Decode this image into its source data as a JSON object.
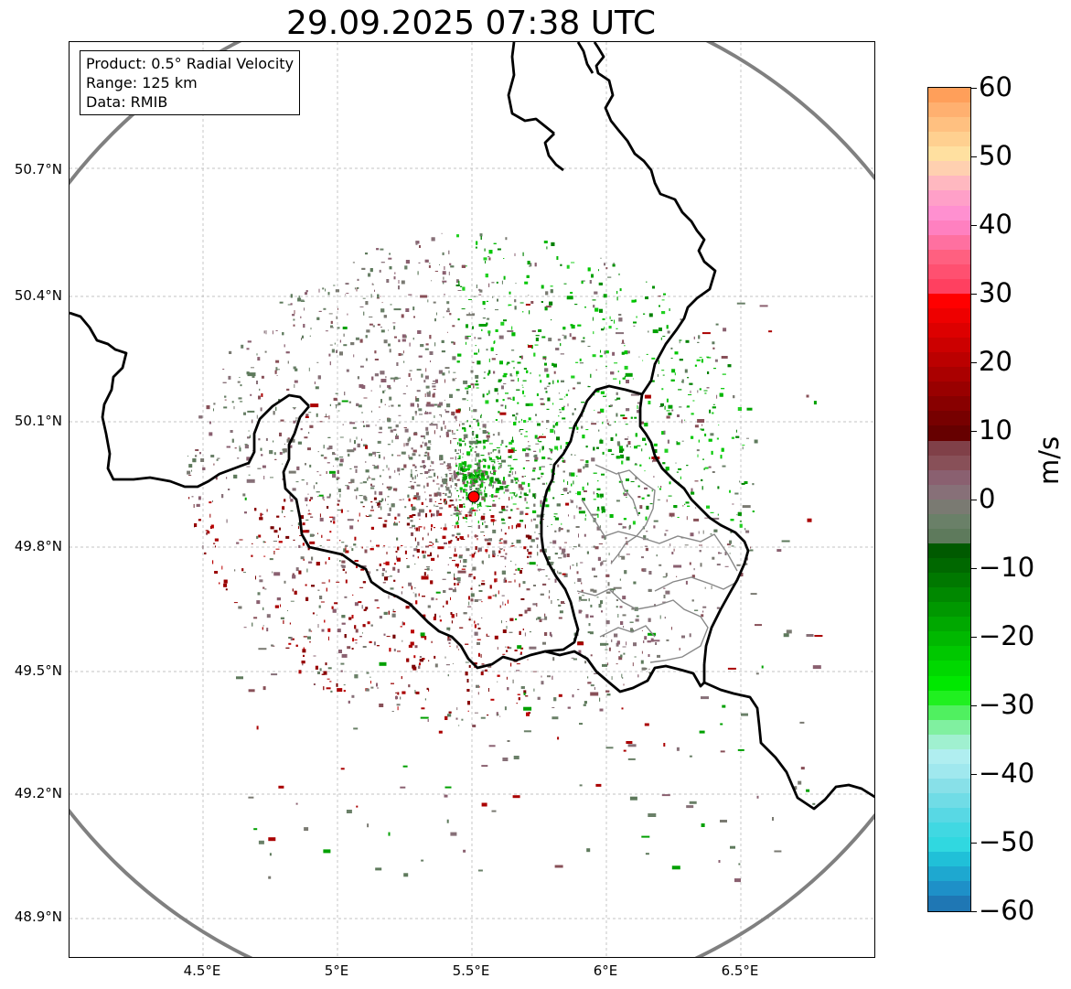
{
  "title": "29.09.2025 07:38 UTC",
  "info_box": {
    "product": "Product: 0.5° Radial Velocity",
    "range": "Range: 125 km",
    "data": "Data: RMIB"
  },
  "lat_labels": [
    "50.7°N",
    "50.4°N",
    "50.1°N",
    "49.8°N",
    "49.5°N",
    "49.2°N",
    "48.9°N"
  ],
  "lon_labels": [
    "4.5°E",
    "5°E",
    "5.5°E",
    "6°E",
    "6.5°E"
  ],
  "colorbar": {
    "unit": "m/s",
    "min": -60,
    "max": 60,
    "ticks": [
      "60",
      "50",
      "40",
      "30",
      "20",
      "10",
      "0",
      "−10",
      "−20",
      "−30",
      "−40",
      "−50",
      "−60"
    ],
    "colors_top_to_bottom": [
      "#ff9f5a",
      "#ffb070",
      "#ffc080",
      "#ffd090",
      "#ffe0a0",
      "#ffd0b0",
      "#ffb8c0",
      "#ffa0c8",
      "#ff90d0",
      "#ff80c0",
      "#ff70a0",
      "#ff6080",
      "#ff5070",
      "#ff4060",
      "#ff0000",
      "#ee0000",
      "#dd0000",
      "#cc0000",
      "#bb0000",
      "#aa0000",
      "#990000",
      "#880000",
      "#770000",
      "#660000",
      "#804048",
      "#885058",
      "#8a6070",
      "#877078",
      "#7a7a72",
      "#6a8068",
      "#5e7a5c",
      "#005a00",
      "#006800",
      "#007800",
      "#008800",
      "#009800",
      "#00a800",
      "#00b800",
      "#00c800",
      "#00d800",
      "#00e800",
      "#20f020",
      "#50f060",
      "#80f0a0",
      "#a0f0d0",
      "#b0eef0",
      "#a0e8ee",
      "#88e0e8",
      "#70dce6",
      "#58d8e4",
      "#40d8e2",
      "#30d8e0",
      "#20c0d8",
      "#1ea8d0",
      "#1e90c8",
      "#1f77b4"
    ]
  },
  "radar_site_color": "#ff0000",
  "range_ring_color": "#808080"
}
